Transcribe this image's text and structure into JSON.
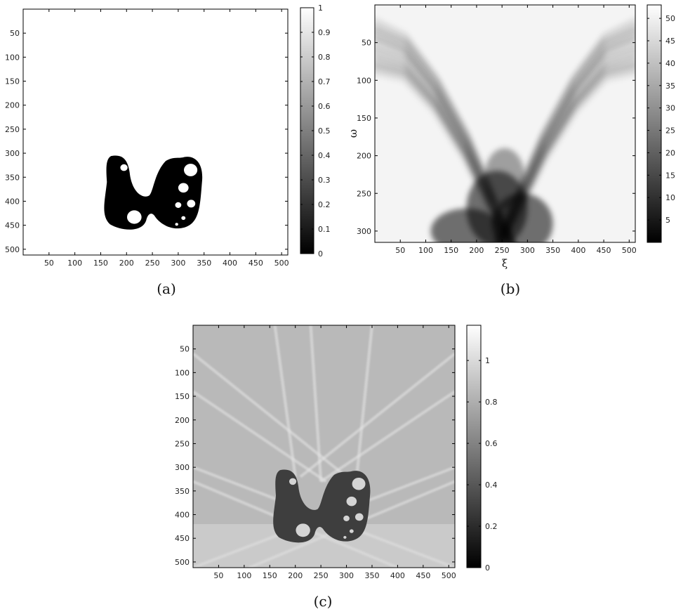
{
  "chart_data": [
    {
      "panel": "(a)",
      "type": "heatmap",
      "colormap": "gray",
      "xlabel": "",
      "ylabel": "",
      "xlim": [
        0,
        512
      ],
      "ylim": [
        512,
        0
      ],
      "xticks": [
        50,
        100,
        150,
        200,
        250,
        300,
        350,
        400,
        450,
        500
      ],
      "yticks": [
        50,
        100,
        150,
        200,
        250,
        300,
        350,
        400,
        450,
        500
      ],
      "colorbar": {
        "range": [
          0,
          1
        ],
        "ticks": [
          0,
          0.1,
          0.2,
          0.3,
          0.4,
          0.5,
          0.6,
          0.7,
          0.8,
          0.9,
          1
        ],
        "tick_labels": [
          "0",
          "0.1",
          "0.2",
          "0.3",
          "0.4",
          "0.5",
          "0.6",
          "0.7",
          "0.8",
          "0.9",
          "1"
        ]
      },
      "background_value": 1,
      "object_value": 0,
      "holes_value": 1
    },
    {
      "panel": "(b)",
      "type": "heatmap",
      "colormap": "gray",
      "xlabel": "ξ",
      "ylabel": "ω",
      "xlim": [
        0,
        512
      ],
      "ylim": [
        315,
        0
      ],
      "xticks": [
        50,
        100,
        150,
        200,
        250,
        300,
        350,
        400,
        450,
        500
      ],
      "yticks": [
        50,
        100,
        150,
        200,
        250,
        300
      ],
      "colorbar": {
        "range": [
          0,
          53
        ],
        "ticks": [
          5,
          10,
          15,
          20,
          25,
          30,
          35,
          40,
          45,
          50
        ],
        "tick_labels": [
          "5",
          "10",
          "15",
          "20",
          "25",
          "30",
          "35",
          "40",
          "45",
          "50"
        ]
      }
    },
    {
      "panel": "(c)",
      "type": "heatmap",
      "colormap": "gray",
      "xlabel": "",
      "ylabel": "",
      "xlim": [
        0,
        512
      ],
      "ylim": [
        512,
        0
      ],
      "xticks": [
        50,
        100,
        150,
        200,
        250,
        300,
        350,
        400,
        450,
        500
      ],
      "yticks": [
        50,
        100,
        150,
        200,
        250,
        300,
        350,
        400,
        450,
        500
      ],
      "colorbar": {
        "range": [
          0,
          1.17
        ],
        "ticks": [
          0,
          0.2,
          0.4,
          0.6,
          0.8,
          1
        ],
        "tick_labels": [
          "0",
          "0.2",
          "0.4",
          "0.6",
          "0.8",
          "1"
        ]
      }
    }
  ],
  "captions": {
    "a": "(a)",
    "b": "(b)",
    "c": "(c)"
  },
  "axis_labels": {
    "b_x": "ξ",
    "b_y": "ω"
  }
}
